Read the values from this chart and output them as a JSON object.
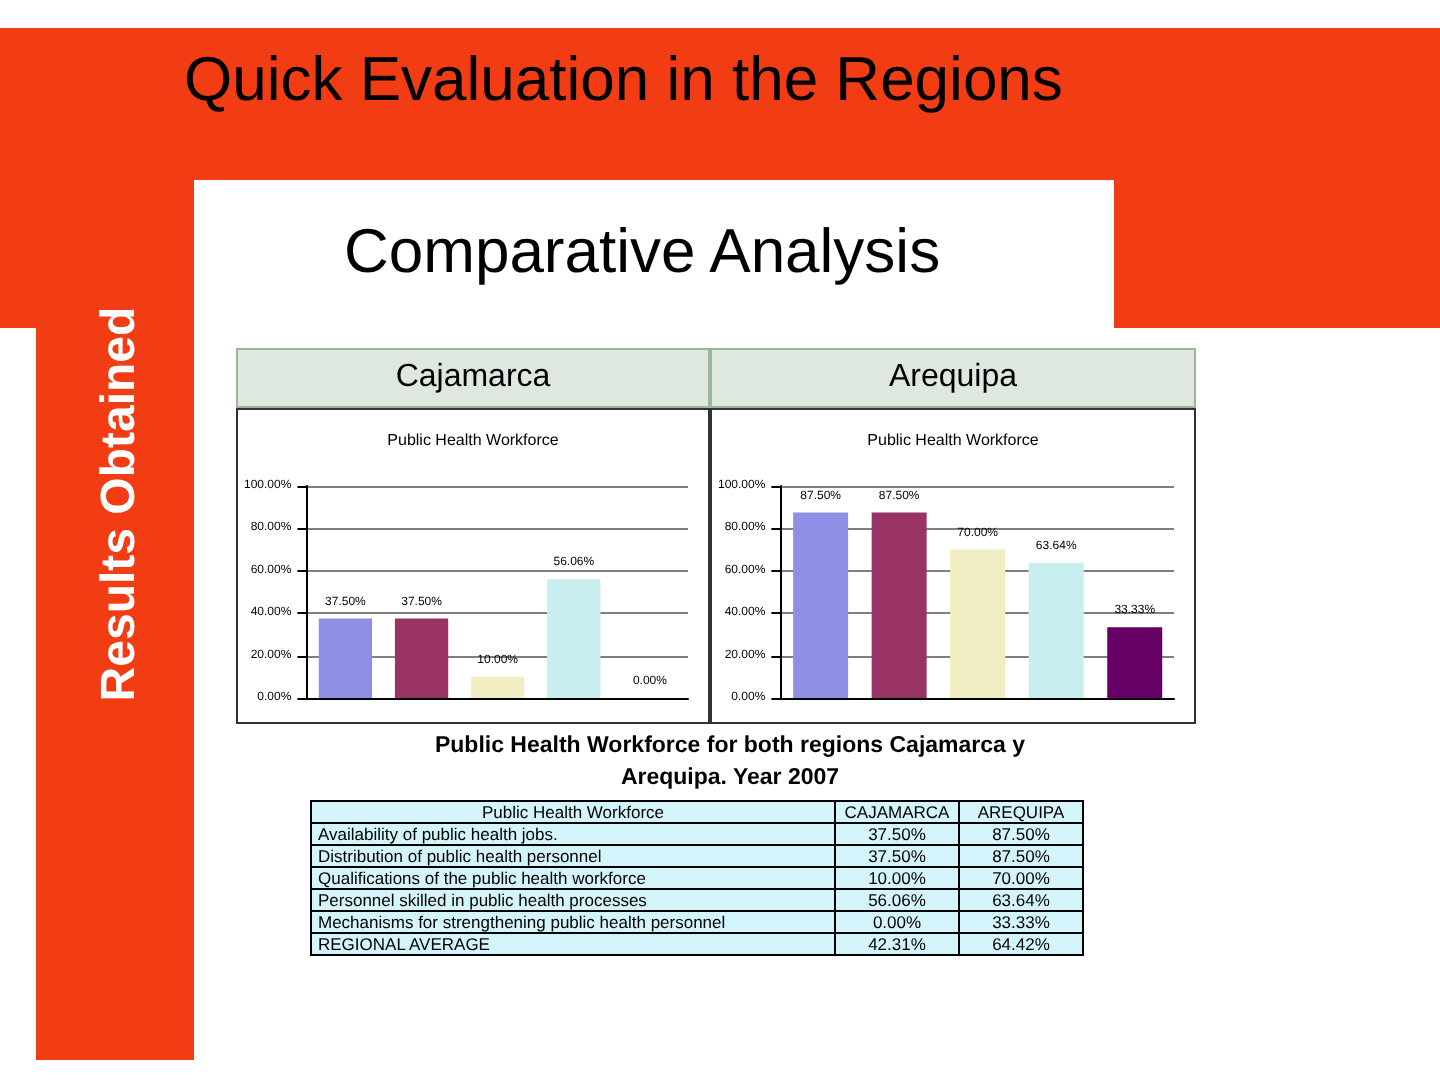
{
  "chart_data": [
    {
      "type": "bar",
      "title": "Public Health Workforce",
      "subtitle": "Cajamarca",
      "annotations": [
        "Quick Evaluation in the Regions",
        "Results Obtained",
        "Comparative Analysis"
      ],
      "categories": [
        null,
        null,
        null,
        null,
        null
      ],
      "values": [
        37.5,
        37.5,
        10,
        56.06,
        0
      ],
      "colors": [
        "#8f8fe6",
        "#993366",
        "#f2eec4",
        "#c8eef0",
        "#660066"
      ],
      "value_labels": [
        "37.50%",
        "37.50%",
        "10.00%",
        "56.06%",
        "0.00%"
      ],
      "ylim": [
        0,
        100
      ],
      "yticks": [
        {
          "value": 0,
          "label": "0.00%"
        },
        {
          "value": 20,
          "label": "20.00%"
        },
        {
          "value": 40,
          "label": "40.00%"
        },
        {
          "value": 60,
          "label": "60.00%"
        },
        {
          "value": 80,
          "label": "80.00%"
        },
        {
          "value": 100,
          "label": "100.00%"
        }
      ],
      "grid": "y"
    },
    {
      "type": "bar",
      "title": "Public Health Workforce",
      "subtitle": "Arequipa",
      "categories": [
        null,
        null,
        null,
        null,
        null
      ],
      "values": [
        87.5,
        87.5,
        70,
        63.64,
        33.33
      ],
      "colors": [
        "#8f8fe6",
        "#993366",
        "#f2eec4",
        "#c8eef0",
        "#660066"
      ],
      "value_labels": [
        "87.50%",
        "87.50%",
        "70.00%",
        "63.64%",
        "33.33%"
      ],
      "ylim": [
        0,
        100
      ],
      "yticks": [
        {
          "value": 0,
          "label": "0.00%"
        },
        {
          "value": 20,
          "label": "20.00%"
        },
        {
          "value": 40,
          "label": "40.00%"
        },
        {
          "value": 60,
          "label": "60.00%"
        },
        {
          "value": 80,
          "label": "80.00%"
        },
        {
          "value": 100,
          "label": "100.00%"
        }
      ],
      "grid": "y"
    },
    {
      "type": "other",
      "title": "Public Health Workforce for both regions Cajamarca y Arequipa. Year 2007",
      "xlabel": "Public Health Workforce",
      "categories": [
        "Availability of public health jobs.",
        "Distribution of public health personnel",
        "Qualifications of the public health workforce",
        "Personnel skilled in public health processes",
        "Mechanisms for strengthening public health personnel",
        "REGIONAL AVERAGE"
      ],
      "series": [
        {
          "name": "CAJAMARCA",
          "values": [
            37.5,
            37.5,
            10,
            56.06,
            0,
            42.31
          ],
          "value_labels": [
            "37.50%",
            "37.50%",
            "10.00%",
            "56.06%",
            "0.00%",
            "42.31%"
          ]
        },
        {
          "name": "AREQUIPA",
          "values": [
            87.5,
            87.5,
            70,
            63.64,
            33.33,
            64.42
          ],
          "value_labels": [
            "87.50%",
            "87.50%",
            "70.00%",
            "63.64%",
            "33.33%",
            "64.42%"
          ]
        }
      ]
    }
  ]
}
